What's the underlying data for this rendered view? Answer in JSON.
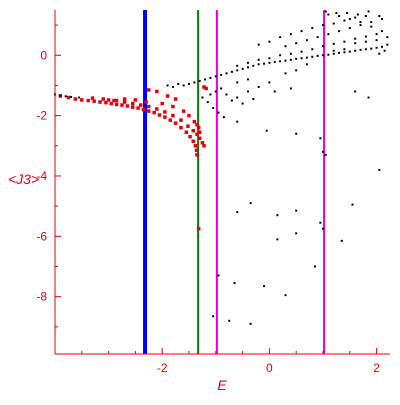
{
  "chart_data": {
    "type": "scatter",
    "title": "",
    "xlabel": "E",
    "ylabel": "<J3>",
    "xlim": [
      -4.0,
      2.25
    ],
    "ylim": [
      -9.9,
      1.5
    ],
    "x_ticks": [
      -2,
      0,
      2
    ],
    "y_ticks": [
      0,
      -2,
      -4,
      -6,
      -8
    ],
    "x_tick_labels": [
      "-2",
      "0",
      "2"
    ],
    "y_tick_labels": [
      "0",
      "-2",
      "-4",
      "-6",
      "-8"
    ],
    "grid": false,
    "axis_color": "#e8000b",
    "vertical_lines": [
      {
        "x": -2.32,
        "color": "#0000ff"
      },
      {
        "x": -1.33,
        "color": "#008000"
      },
      {
        "x": -0.98,
        "color": "#e000e0"
      },
      {
        "x": 1.02,
        "color": "#e000e0"
      }
    ],
    "series": [
      {
        "color": "#e8000b",
        "marker": "square",
        "points": [
          [
            -3.9,
            -1.35
          ],
          [
            -3.75,
            -1.4
          ],
          [
            -3.62,
            -1.45
          ],
          [
            -3.5,
            -1.48
          ],
          [
            -3.38,
            -1.5
          ],
          [
            -3.27,
            -1.52
          ],
          [
            -3.16,
            -1.55
          ],
          [
            -3.05,
            -1.57
          ],
          [
            -2.95,
            -1.6
          ],
          [
            -2.85,
            -1.63
          ],
          [
            -2.75,
            -1.65
          ],
          [
            -2.65,
            -1.68
          ],
          [
            -2.55,
            -1.72
          ],
          [
            -2.45,
            -1.75
          ],
          [
            -2.35,
            -1.8
          ],
          [
            -2.25,
            -1.85
          ],
          [
            -2.15,
            -1.9
          ],
          [
            -2.05,
            -1.98
          ],
          [
            -1.95,
            -2.05
          ],
          [
            -1.85,
            -2.15
          ],
          [
            -1.75,
            -2.25
          ],
          [
            -1.65,
            -2.4
          ],
          [
            -1.55,
            -2.55
          ],
          [
            -1.48,
            -2.7
          ],
          [
            -1.42,
            -2.85
          ],
          [
            -1.38,
            -3.0
          ],
          [
            -1.36,
            -3.15
          ],
          [
            -1.35,
            -3.3
          ],
          [
            -3.0,
            -1.48
          ],
          [
            -2.85,
            -1.5
          ],
          [
            -2.7,
            -1.55
          ],
          [
            -2.55,
            -1.6
          ],
          [
            -2.4,
            -1.65
          ],
          [
            -2.25,
            -1.7
          ],
          [
            -2.1,
            -1.78
          ],
          [
            -1.95,
            -1.88
          ],
          [
            -1.8,
            -2.0
          ],
          [
            -1.65,
            -2.15
          ],
          [
            -1.52,
            -2.35
          ],
          [
            -1.42,
            -2.5
          ],
          [
            -1.35,
            -2.62
          ],
          [
            -1.3,
            -2.75
          ],
          [
            -1.25,
            -2.9
          ],
          [
            -1.22,
            -3.0
          ],
          [
            -3.3,
            -1.42
          ],
          [
            -3.1,
            -1.45
          ],
          [
            -2.9,
            -1.5
          ],
          [
            -2.7,
            -1.45
          ],
          [
            -2.5,
            -1.48
          ],
          [
            -2.3,
            -1.55
          ],
          [
            -2.0,
            -1.6
          ],
          [
            -1.8,
            -1.7
          ],
          [
            -1.6,
            -1.85
          ],
          [
            -1.5,
            -2.0
          ],
          [
            -1.4,
            -2.2
          ],
          [
            -1.35,
            -2.3
          ],
          [
            -1.32,
            -2.4
          ],
          [
            -1.3,
            -2.55
          ],
          [
            -2.25,
            -1.15
          ],
          [
            -2.1,
            -1.2
          ],
          [
            -1.9,
            -1.35
          ],
          [
            -1.75,
            -1.45
          ],
          [
            -1.22,
            -1.05
          ],
          [
            -1.18,
            -1.1
          ],
          [
            -1.32,
            -5.75
          ]
        ]
      },
      {
        "color": "#000000",
        "marker": "dot",
        "points": [
          [
            -4.0,
            -1.3
          ],
          [
            -3.9,
            -1.33
          ],
          [
            -3.8,
            -1.36
          ],
          [
            -3.7,
            -1.38
          ],
          [
            -3.55,
            -1.4
          ],
          [
            -1.9,
            -1.0
          ],
          [
            -1.8,
            -1.05
          ],
          [
            -1.7,
            -0.95
          ],
          [
            -1.6,
            -1.0
          ],
          [
            -1.5,
            -0.95
          ],
          [
            -1.4,
            -0.9
          ],
          [
            -1.3,
            -0.85
          ],
          [
            -1.2,
            -0.8
          ],
          [
            -1.1,
            -0.75
          ],
          [
            -1.0,
            -0.7
          ],
          [
            -0.9,
            -0.65
          ],
          [
            -0.8,
            -0.6
          ],
          [
            -0.7,
            -0.55
          ],
          [
            -0.6,
            -0.5
          ],
          [
            -0.5,
            -0.45
          ],
          [
            -0.4,
            -0.4
          ],
          [
            -0.3,
            -0.35
          ],
          [
            -0.2,
            -0.3
          ],
          [
            -0.1,
            -0.28
          ],
          [
            0.0,
            -0.25
          ],
          [
            0.1,
            -0.22
          ],
          [
            0.2,
            -0.2
          ],
          [
            0.3,
            -0.18
          ],
          [
            0.4,
            -0.15
          ],
          [
            0.5,
            -0.12
          ],
          [
            0.6,
            -0.1
          ],
          [
            0.7,
            -0.08
          ],
          [
            0.8,
            -0.05
          ],
          [
            0.9,
            -0.02
          ],
          [
            1.0,
            0.0
          ],
          [
            1.1,
            0.02
          ],
          [
            1.2,
            0.05
          ],
          [
            1.3,
            0.08
          ],
          [
            1.4,
            0.1
          ],
          [
            1.5,
            0.12
          ],
          [
            1.6,
            0.15
          ],
          [
            1.7,
            0.18
          ],
          [
            1.8,
            0.2
          ],
          [
            1.9,
            0.22
          ],
          [
            2.0,
            0.25
          ],
          [
            2.1,
            0.28
          ],
          [
            -0.6,
            -0.35
          ],
          [
            -0.4,
            -0.25
          ],
          [
            -0.2,
            -0.15
          ],
          [
            0.0,
            -0.1
          ],
          [
            0.2,
            0.0
          ],
          [
            0.4,
            0.05
          ],
          [
            0.6,
            0.12
          ],
          [
            0.8,
            0.2
          ],
          [
            1.0,
            0.3
          ],
          [
            1.2,
            0.38
          ],
          [
            1.4,
            0.45
          ],
          [
            1.6,
            0.55
          ],
          [
            1.8,
            0.62
          ],
          [
            2.0,
            0.7
          ],
          [
            0.3,
            0.3
          ],
          [
            0.5,
            0.4
          ],
          [
            0.7,
            0.5
          ],
          [
            0.9,
            0.6
          ],
          [
            1.1,
            0.7
          ],
          [
            1.3,
            0.8
          ],
          [
            1.5,
            0.9
          ],
          [
            1.7,
            1.0
          ],
          [
            1.9,
            1.1
          ],
          [
            2.1,
            1.2
          ],
          [
            0.6,
            0.8
          ],
          [
            0.8,
            0.9
          ],
          [
            1.0,
            1.0
          ],
          [
            1.2,
            1.05
          ],
          [
            1.4,
            1.15
          ],
          [
            1.6,
            1.25
          ],
          [
            1.8,
            1.3
          ],
          [
            1.1,
            1.35
          ],
          [
            1.3,
            1.3
          ],
          [
            1.5,
            1.2
          ],
          [
            1.7,
            1.1
          ],
          [
            1.9,
            0.95
          ],
          [
            2.1,
            0.8
          ],
          [
            2.2,
            0.6
          ],
          [
            2.2,
            0.35
          ],
          [
            2.15,
            0.15
          ],
          [
            2.05,
            0.05
          ],
          [
            1.05,
            1.45
          ],
          [
            1.25,
            1.4
          ],
          [
            1.45,
            1.4
          ],
          [
            1.65,
            1.35
          ],
          [
            1.85,
            1.45
          ],
          [
            2.05,
            1.3
          ],
          [
            0.2,
            0.6
          ],
          [
            0.4,
            0.7
          ],
          [
            0.0,
            0.45
          ],
          [
            -0.2,
            0.35
          ],
          [
            1.6,
            0.4
          ],
          [
            1.8,
            0.45
          ],
          [
            2.0,
            0.5
          ],
          [
            1.4,
            0.2
          ],
          [
            1.2,
            0.15
          ],
          [
            -1.0,
            -1.2
          ],
          [
            -0.8,
            -1.3
          ],
          [
            -0.6,
            -1.4
          ],
          [
            -0.4,
            -1.2
          ],
          [
            -0.2,
            -1.05
          ],
          [
            0.0,
            -0.9
          ],
          [
            -0.7,
            -1.5
          ],
          [
            -0.5,
            -1.6
          ],
          [
            -0.3,
            -1.45
          ],
          [
            -0.9,
            -1.1
          ],
          [
            -1.1,
            -1.3
          ],
          [
            -0.4,
            -0.8
          ],
          [
            -0.6,
            -0.9
          ],
          [
            0.3,
            -0.6
          ],
          [
            0.5,
            -0.5
          ],
          [
            0.7,
            -0.3
          ],
          [
            -1.25,
            -1.4
          ],
          [
            -1.15,
            -1.55
          ],
          [
            -1.05,
            -1.75
          ],
          [
            -0.95,
            -1.9
          ],
          [
            -0.85,
            -2.05
          ],
          [
            -0.6,
            -2.2
          ],
          [
            0.1,
            -1.2
          ],
          [
            0.4,
            -1.1
          ],
          [
            1.6,
            -1.2
          ],
          [
            1.85,
            -1.4
          ],
          [
            -0.05,
            -2.5
          ],
          [
            0.5,
            -2.6
          ],
          [
            0.95,
            -2.75
          ],
          [
            1.0,
            -3.2
          ],
          [
            1.05,
            -3.3
          ],
          [
            2.05,
            -3.8
          ],
          [
            -0.6,
            -5.2
          ],
          [
            -0.35,
            -4.9
          ],
          [
            0.15,
            -5.3
          ],
          [
            0.5,
            -5.15
          ],
          [
            0.95,
            -5.55
          ],
          [
            1.0,
            -5.75
          ],
          [
            1.55,
            -4.95
          ],
          [
            0.15,
            -6.1
          ],
          [
            0.5,
            -5.9
          ],
          [
            1.35,
            -6.15
          ],
          [
            0.85,
            -7.0
          ],
          [
            -0.95,
            -7.3
          ],
          [
            -0.65,
            -7.55
          ],
          [
            -0.1,
            -7.65
          ],
          [
            0.3,
            -7.95
          ],
          [
            -1.05,
            -8.65
          ],
          [
            -0.75,
            -8.8
          ],
          [
            -0.35,
            -8.9
          ]
        ]
      }
    ]
  }
}
